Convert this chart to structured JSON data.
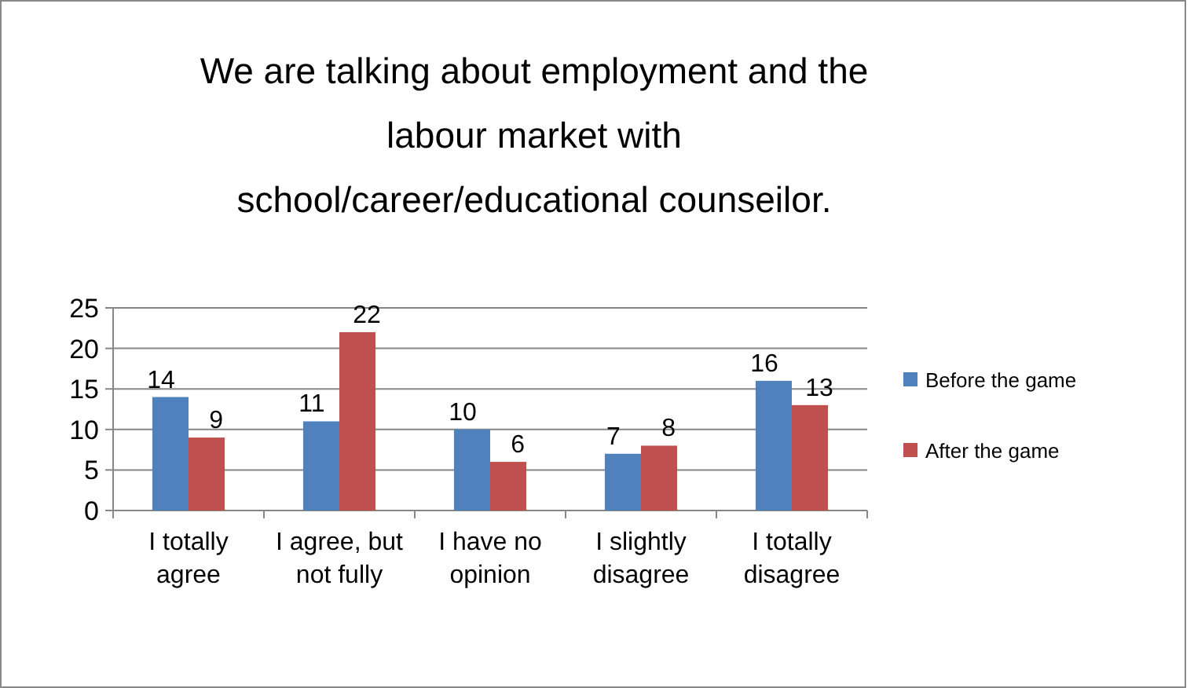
{
  "chart_data": {
    "type": "bar",
    "title": "We are talking about employment and the\nlabour market with\nschool/career/educational counseilor.",
    "categories": [
      "I totally agree",
      "I agree, but not fully",
      "I have no opinion",
      "I slightly disagree",
      "I totally disagree"
    ],
    "series": [
      {
        "name": "Before the game",
        "color": "#4f81bd",
        "values": [
          14,
          11,
          10,
          7,
          16
        ]
      },
      {
        "name": "After the game",
        "color": "#c0504d",
        "values": [
          9,
          22,
          6,
          8,
          13
        ]
      }
    ],
    "ylim": [
      0,
      25
    ],
    "yticks": [
      0,
      5,
      10,
      15,
      20,
      25
    ],
    "grid": "y",
    "legend": "right",
    "data_labels": true
  }
}
